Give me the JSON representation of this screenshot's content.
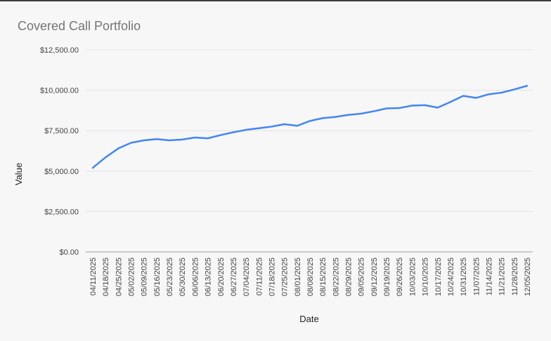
{
  "window": {
    "top_edge_color": "#3d3d3d",
    "background_color": "#f7f7f8"
  },
  "chart_data": {
    "type": "line",
    "title": "Covered Call Portfolio",
    "xlabel": "Date",
    "ylabel": "Value",
    "categories": [
      "04/11/2025",
      "04/18/2025",
      "04/25/2025",
      "05/02/2025",
      "05/09/2025",
      "05/16/2025",
      "05/23/2025",
      "05/30/2025",
      "06/06/2025",
      "06/13/2025",
      "06/20/2025",
      "06/27/2025",
      "07/04/2025",
      "07/11/2025",
      "07/18/2025",
      "07/25/2025",
      "08/01/2025",
      "08/08/2025",
      "08/15/2025",
      "08/22/2025",
      "08/29/2025",
      "09/05/2025",
      "09/12/2025",
      "09/19/2025",
      "09/26/2025",
      "10/03/2025",
      "10/10/2025",
      "10/17/2025",
      "10/24/2025",
      "10/31/2025",
      "11/07/2025",
      "11/14/2025",
      "11/21/2025",
      "11/28/2025",
      "12/05/2025"
    ],
    "series": [
      {
        "name": "Value",
        "values": [
          5200,
          5850,
          6400,
          6750,
          6900,
          6975,
          6900,
          6950,
          7075,
          7025,
          7225,
          7400,
          7550,
          7650,
          7750,
          7900,
          7800,
          8100,
          8275,
          8350,
          8475,
          8550,
          8700,
          8875,
          8900,
          9050,
          9075,
          8925,
          9275,
          9650,
          9525,
          9750,
          9850,
          10050,
          10275
        ]
      }
    ],
    "ylim": [
      0,
      12500
    ],
    "yticks": [
      0,
      2500,
      5000,
      7500,
      10000,
      12500
    ],
    "ytick_labels": [
      "$0.00",
      "$2,500.00",
      "$5,000.00",
      "$7,500.00",
      "$10,000.00",
      "$12,500.00"
    ],
    "grid": true,
    "legend": "none",
    "line_color": "#4285f4",
    "title_color": "#757575",
    "tick_label_color": "#424242",
    "axis_title_color": "#202124",
    "gridline_color": "#e3e4e6",
    "baseline_color": "#9e9e9e"
  }
}
